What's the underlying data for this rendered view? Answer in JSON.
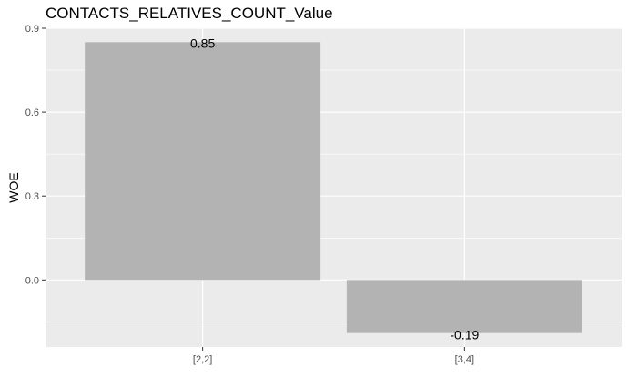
{
  "chart_data": {
    "type": "bar",
    "title": "CONTACTS_RELATIVES_COUNT_Value",
    "xlabel": "",
    "ylabel": "WOE",
    "categories": [
      "[2,2]",
      "[3,4]"
    ],
    "values": [
      0.85,
      -0.19
    ],
    "value_labels": [
      "0.85",
      "-0.19"
    ],
    "ylim": [
      -0.24,
      0.9
    ],
    "yticks": [
      0.0,
      0.3,
      0.6,
      0.9
    ],
    "ytick_labels": [
      "0.0",
      "0.3",
      "0.6",
      "0.9"
    ],
    "grid": true,
    "bar_color": "#b3b3b3",
    "panel_color": "#ebebeb",
    "grid_color": "#ffffff"
  }
}
